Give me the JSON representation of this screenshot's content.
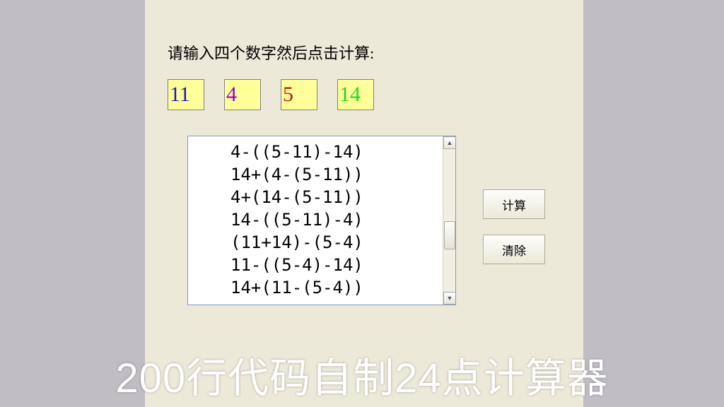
{
  "prompt": "请输入四个数字然后点击计算:",
  "inputs": [
    {
      "value": "11",
      "color": "#1818c0"
    },
    {
      "value": "4",
      "color": "#9400d3"
    },
    {
      "value": "5",
      "color": "#c01515"
    },
    {
      "value": "14",
      "color": "#20d820"
    }
  ],
  "results": [
    "4-((5-11)-14)",
    "14+(4-(5-11))",
    "4+(14-(5-11))",
    "14-((5-11)-4)",
    "(11+14)-(5-4)",
    "11-((5-4)-14)",
    "14+(11-(5-4))"
  ],
  "buttons": {
    "calc": "计算",
    "clear": "清除"
  },
  "caption": "200行代码自制24点计算器",
  "colors": {
    "outer_bg": "#c0bdc5",
    "panel_bg": "#ece9d8",
    "input_bg": "#ffff99",
    "result_bg": "#ffffff",
    "border": "#7f9db9"
  }
}
